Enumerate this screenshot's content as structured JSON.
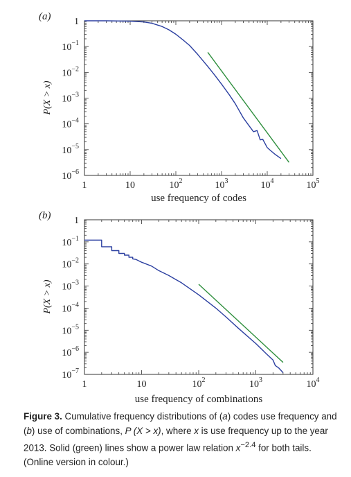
{
  "caption": {
    "lead": "Figure 3.",
    "text_1": " Cumulative frequency distributions of (",
    "a_letter": "a",
    "text_2": ") codes use frequency and (",
    "b_letter": "b",
    "text_3": ") use of combinations, ",
    "prob_expr": "P (X > x)",
    "text_4": ", where ",
    "x_var": "x",
    "text_5": " is use frequency up to the year 2013. Solid (green) lines show a power law relation ",
    "pl_base": "x",
    "pl_exp": "−2.4",
    "text_6": " for both tails. (Online version in colour.)"
  },
  "colors": {
    "empirical": "#2b3fa0",
    "power_law": "#2f8f3e",
    "axis": "#333333"
  },
  "chart_data": [
    {
      "type": "line",
      "panel_label": "(a)",
      "xlabel": "use frequency of codes",
      "ylabel": "P(X > x)",
      "xscale": "log",
      "yscale": "log",
      "xlim": [
        1,
        100000
      ],
      "ylim": [
        1e-06,
        1
      ],
      "x_ticks": [
        {
          "value": 1,
          "base": "1",
          "exp": ""
        },
        {
          "value": 10,
          "base": "10",
          "exp": ""
        },
        {
          "value": 100,
          "base": "10",
          "exp": "2"
        },
        {
          "value": 1000,
          "base": "10",
          "exp": "3"
        },
        {
          "value": 10000,
          "base": "10",
          "exp": "4"
        },
        {
          "value": 100000,
          "base": "10",
          "exp": "5"
        }
      ],
      "y_ticks": [
        {
          "value": 1,
          "base": "1",
          "exp": ""
        },
        {
          "value": 0.1,
          "base": "10",
          "exp": "−1"
        },
        {
          "value": 0.01,
          "base": "10",
          "exp": "−2"
        },
        {
          "value": 0.001,
          "base": "10",
          "exp": "−3"
        },
        {
          "value": 0.0001,
          "base": "10",
          "exp": "−4"
        },
        {
          "value": 1e-05,
          "base": "10",
          "exp": "−5"
        },
        {
          "value": 1e-06,
          "base": "10",
          "exp": "−6"
        }
      ],
      "series": [
        {
          "role": "empirical",
          "x": [
            1,
            3,
            10,
            20,
            30,
            50,
            70,
            100,
            150,
            200,
            300,
            500,
            700,
            1000,
            1500,
            2000,
            3000,
            4000,
            5000,
            6000,
            7000,
            8000,
            10000,
            12000,
            15000,
            20000
          ],
          "y": [
            1,
            1,
            0.97,
            0.9,
            0.8,
            0.6,
            0.45,
            0.3,
            0.17,
            0.11,
            0.05,
            0.017,
            0.008,
            0.0035,
            0.0013,
            0.0006,
            0.00017,
            8.5e-05,
            5e-05,
            5.5e-05,
            2.4e-05,
            2.5e-05,
            1.2e-05,
            9e-06,
            6.5e-06,
            4.5e-06
          ]
        },
        {
          "role": "power_law",
          "x": [
            500,
            30000
          ],
          "y": [
            0.06,
            3.2e-06
          ]
        }
      ]
    },
    {
      "type": "line",
      "panel_label": "(b)",
      "xlabel": "use frequency of combinations",
      "ylabel": "P(X > x)",
      "xscale": "log",
      "yscale": "log",
      "xlim": [
        1,
        10000
      ],
      "ylim": [
        1e-07,
        1
      ],
      "x_ticks": [
        {
          "value": 1,
          "base": "1",
          "exp": ""
        },
        {
          "value": 10,
          "base": "10",
          "exp": ""
        },
        {
          "value": 100,
          "base": "10",
          "exp": "2"
        },
        {
          "value": 1000,
          "base": "10",
          "exp": "3"
        },
        {
          "value": 10000,
          "base": "10",
          "exp": "4"
        }
      ],
      "y_ticks": [
        {
          "value": 1,
          "base": "1",
          "exp": ""
        },
        {
          "value": 0.1,
          "base": "10",
          "exp": "−1"
        },
        {
          "value": 0.01,
          "base": "10",
          "exp": "−2"
        },
        {
          "value": 0.001,
          "base": "10",
          "exp": "−3"
        },
        {
          "value": 0.0001,
          "base": "10",
          "exp": "−4"
        },
        {
          "value": 1e-05,
          "base": "10",
          "exp": "−5"
        },
        {
          "value": 1e-06,
          "base": "10",
          "exp": "−6"
        },
        {
          "value": 1e-07,
          "base": "10",
          "exp": "−7"
        }
      ],
      "series": [
        {
          "role": "empirical",
          "x": [
            1,
            2,
            2,
            3,
            3,
            4,
            4,
            5,
            5,
            6,
            6,
            7,
            7,
            8,
            10,
            15,
            20,
            30,
            50,
            100,
            200,
            300,
            500,
            1000,
            1500,
            2000,
            2200,
            2500,
            3000
          ],
          "y": [
            0.12,
            0.12,
            0.06,
            0.06,
            0.04,
            0.04,
            0.03,
            0.03,
            0.025,
            0.025,
            0.02,
            0.02,
            0.017,
            0.016,
            0.012,
            0.008,
            0.005,
            0.003,
            0.0014,
            0.0004,
            0.0001,
            4e-05,
            1.2e-05,
            2.5e-06,
            9e-07,
            4.5e-07,
            2.5e-07,
            2e-07,
            1.2e-07
          ]
        },
        {
          "role": "power_law",
          "x": [
            100,
            3000
          ],
          "y": [
            0.0012,
            3.5e-07
          ]
        }
      ]
    }
  ]
}
